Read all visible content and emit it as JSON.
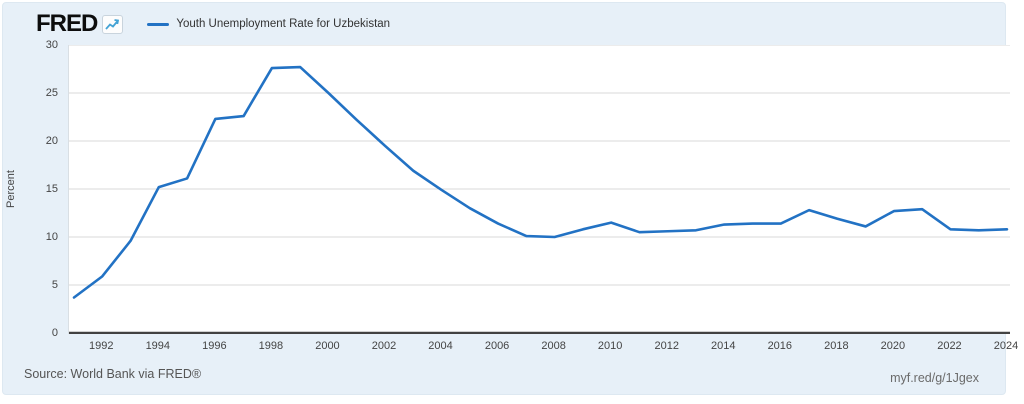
{
  "header": {
    "logo_text": "FRED",
    "legend_label": "Youth Unemployment Rate for Uzbekistan"
  },
  "footer": {
    "source_text": "Source: World Bank via FRED®",
    "permalink_text": "myf.red/g/1Jgex"
  },
  "colors": {
    "line": "#2272c4",
    "widget_bg": "#e7f0f8",
    "grid": "#d9d9d9",
    "baseline": "#424242",
    "icon_line": "#44a3d5"
  },
  "chart_data": {
    "type": "line",
    "title": "Youth Unemployment Rate for Uzbekistan",
    "ylabel": "Percent",
    "xlabel": "",
    "ylim": [
      0,
      30
    ],
    "yticks": [
      0,
      5,
      10,
      15,
      20,
      25,
      30
    ],
    "xticks": [
      1992,
      1994,
      1996,
      1998,
      2000,
      2002,
      2004,
      2006,
      2008,
      2010,
      2012,
      2014,
      2016,
      2018,
      2020,
      2022,
      2024
    ],
    "grid": true,
    "legend_position": "top-left",
    "series": [
      {
        "name": "Youth Unemployment Rate for Uzbekistan",
        "x": [
          1991,
          1992,
          1993,
          1994,
          1995,
          1996,
          1997,
          1998,
          1999,
          2000,
          2001,
          2002,
          2003,
          2004,
          2005,
          2006,
          2007,
          2008,
          2009,
          2010,
          2011,
          2012,
          2013,
          2014,
          2015,
          2016,
          2017,
          2018,
          2019,
          2020,
          2021,
          2022,
          2023,
          2024
        ],
        "values": [
          3.7,
          5.9,
          9.6,
          15.2,
          16.1,
          22.3,
          22.6,
          27.6,
          27.7,
          25.0,
          22.2,
          19.5,
          16.9,
          14.9,
          13.0,
          11.4,
          10.1,
          10.0,
          10.8,
          11.5,
          10.5,
          10.6,
          10.7,
          11.3,
          11.4,
          11.4,
          12.8,
          11.9,
          11.1,
          12.7,
          12.9,
          10.8,
          10.7,
          10.8
        ]
      }
    ]
  }
}
